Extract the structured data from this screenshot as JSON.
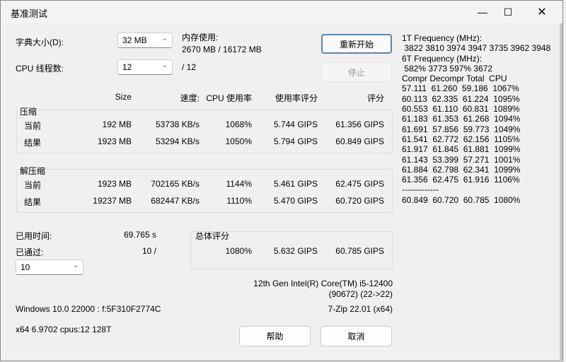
{
  "window": {
    "title": "基准测试",
    "minimize_icon": "minimize-icon",
    "maximize_icon": "maximize-icon",
    "close_icon": "close-icon"
  },
  "settings": {
    "dict_label": "字典大小(D):",
    "dict_value": "32 MB",
    "threads_label": "CPU 线程数:",
    "threads_value": "12",
    "threads_max": "/ 12",
    "memory_label": "内存使用:",
    "memory_value": "2670 MB / 16172 MB"
  },
  "buttons": {
    "restart": "重新开始",
    "stop": "停止",
    "help": "帮助",
    "cancel": "取消"
  },
  "columns": [
    "Size",
    "速度:",
    "CPU 使用率",
    "使用率评分",
    "评分"
  ],
  "compress": {
    "label": "压缩",
    "rows": [
      [
        "当前",
        "192 MB",
        "53738 KB/s",
        "1068%",
        "5.744 GIPS",
        "61.356 GIPS"
      ],
      [
        "结果",
        "1923 MB",
        "53294 KB/s",
        "1050%",
        "5.794 GIPS",
        "60.849 GIPS"
      ]
    ]
  },
  "decompress": {
    "label": "解压缩",
    "rows": [
      [
        "当前",
        "1923 MB",
        "702165 KB/s",
        "1144%",
        "5.461 GIPS",
        "62.475 GIPS"
      ],
      [
        "结果",
        "19237 MB",
        "682447 KB/s",
        "1110%",
        "5.470 GIPS",
        "60.720 GIPS"
      ]
    ]
  },
  "elapsed": {
    "label": "已用时间:",
    "value": "69.765 s"
  },
  "passes": {
    "label": "已通过:",
    "value": "10 /",
    "select": "10"
  },
  "total": {
    "label": "总体评分",
    "cpu": "1080%",
    "usage_rating": "5.632 GIPS",
    "rating": "60.785 GIPS"
  },
  "cpu_info": {
    "name": "12th Gen Intel(R) Core(TM) i5-12400",
    "id": "(90672) (22->22)",
    "os": "Windows 10.0 22000 : f:5F310F2774C",
    "version": "7-Zip 22.01 (x64)",
    "arch": "x64 6.9702 cpus:12 128T"
  },
  "log": [
    "1T Frequency (MHz):",
    " 3822 3810 3974 3947 3735 3962 3948",
    "6T Frequency (MHz):",
    " 582% 3773 597% 3672",
    "Compr Decompr Total  CPU",
    "57.111  61.260  59.186  1067%",
    "60.113  62.335  61.224  1095%",
    "60.553  61.110  60.831  1089%",
    "61.183  61.353  61.268  1094%",
    "61.691  57.856  59.773  1049%",
    "61.541  62.772  62.156  1105%",
    "61.917  61.845  61.881  1099%",
    "61.143  53.399  57.271  1001%",
    "61.884  62.798  62.341  1099%",
    "61.356  62.475  61.916  1106%",
    "-------------",
    "60.849  60.720  60.785  1080%"
  ]
}
